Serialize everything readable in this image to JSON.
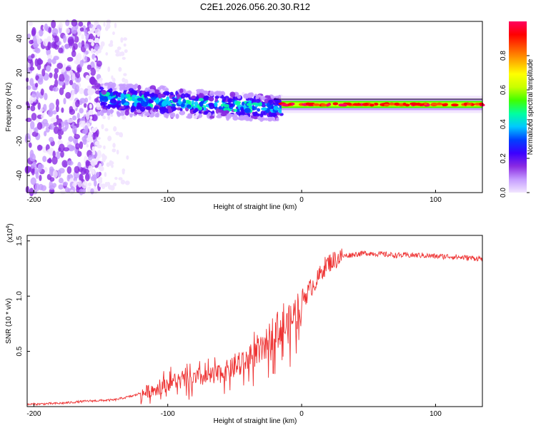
{
  "title": "C2E1.2026.056.20.30.R12",
  "chart_data": [
    {
      "type": "heatmap",
      "xlabel": "Height of straight line (km)",
      "ylabel": "Frequency (Hz)",
      "xlim": [
        -205,
        135
      ],
      "ylim": [
        -50,
        50
      ],
      "xticks": [
        -200,
        -100,
        0,
        100
      ],
      "xtick_labels": [
        "-200",
        "-100",
        "0",
        "100"
      ],
      "yticks": [
        -40,
        -20,
        0,
        20,
        40
      ],
      "ytick_labels": [
        "-40",
        "-20",
        "0",
        "20",
        "40"
      ],
      "colorbar": {
        "label": "Normalized spectral amplitude",
        "range": [
          0,
          1
        ],
        "ticks": [
          0.0,
          0.2,
          0.4,
          0.6,
          0.8
        ],
        "tick_labels": [
          "0.0",
          "0.2",
          "0.4",
          "0.6",
          "0.8"
        ],
        "colors": [
          "#f2e6ff",
          "#c59cff",
          "#8a2be2",
          "#3b00ff",
          "#0040ff",
          "#00c8ff",
          "#00ffa0",
          "#40ff00",
          "#c8ff00",
          "#ffff00",
          "#ffaa00",
          "#ff5500",
          "#ff0000",
          "#ff0060"
        ]
      },
      "regions": [
        {
          "name": "scattered noise",
          "x_range": [
            -205,
            -150
          ],
          "y_range": [
            -50,
            50
          ],
          "amplitude": 0.12
        },
        {
          "name": "dispersed signal",
          "x_range": [
            -150,
            -15
          ],
          "y_range": [
            -12,
            15
          ],
          "amplitude": 0.3
        },
        {
          "name": "steady tone",
          "x_range": [
            -15,
            135
          ],
          "y_center": 1.5,
          "y_width": 3,
          "amplitude": 0.95
        }
      ]
    },
    {
      "type": "line",
      "xlabel": "Height of straight line (km)",
      "ylabel": "SNR (10 * v/v)",
      "yscale_label": "(x10",
      "yscale_exp": "4",
      "xlim": [
        -205,
        135
      ],
      "ylim": [
        0,
        1.55
      ],
      "xticks": [
        -200,
        -100,
        0,
        100
      ],
      "xtick_labels": [
        "-200",
        "-100",
        "0",
        "100"
      ],
      "yticks": [
        0.5,
        1.0,
        1.5
      ],
      "ytick_labels": [
        "0.5",
        "1.0",
        "1.5"
      ],
      "color": "#ee3333",
      "series": [
        {
          "name": "SNR",
          "x": [
            -205,
            -180,
            -160,
            -140,
            -125,
            -115,
            -105,
            -95,
            -85,
            -75,
            -65,
            -55,
            -45,
            -35,
            -28,
            -22,
            -17,
            -12,
            -8,
            -4,
            0,
            4,
            8,
            12,
            16,
            20,
            25,
            30,
            40,
            50,
            60,
            70,
            80,
            90,
            100,
            110,
            120,
            135
          ],
          "y": [
            0.02,
            0.03,
            0.05,
            0.06,
            0.1,
            0.15,
            0.2,
            0.25,
            0.25,
            0.28,
            0.3,
            0.35,
            0.4,
            0.5,
            0.55,
            0.7,
            0.75,
            0.75,
            0.8,
            0.9,
            0.98,
            1.02,
            1.1,
            1.15,
            1.25,
            1.3,
            1.33,
            1.36,
            1.38,
            1.39,
            1.38,
            1.37,
            1.37,
            1.37,
            1.36,
            1.36,
            1.35,
            1.34
          ]
        }
      ]
    }
  ]
}
